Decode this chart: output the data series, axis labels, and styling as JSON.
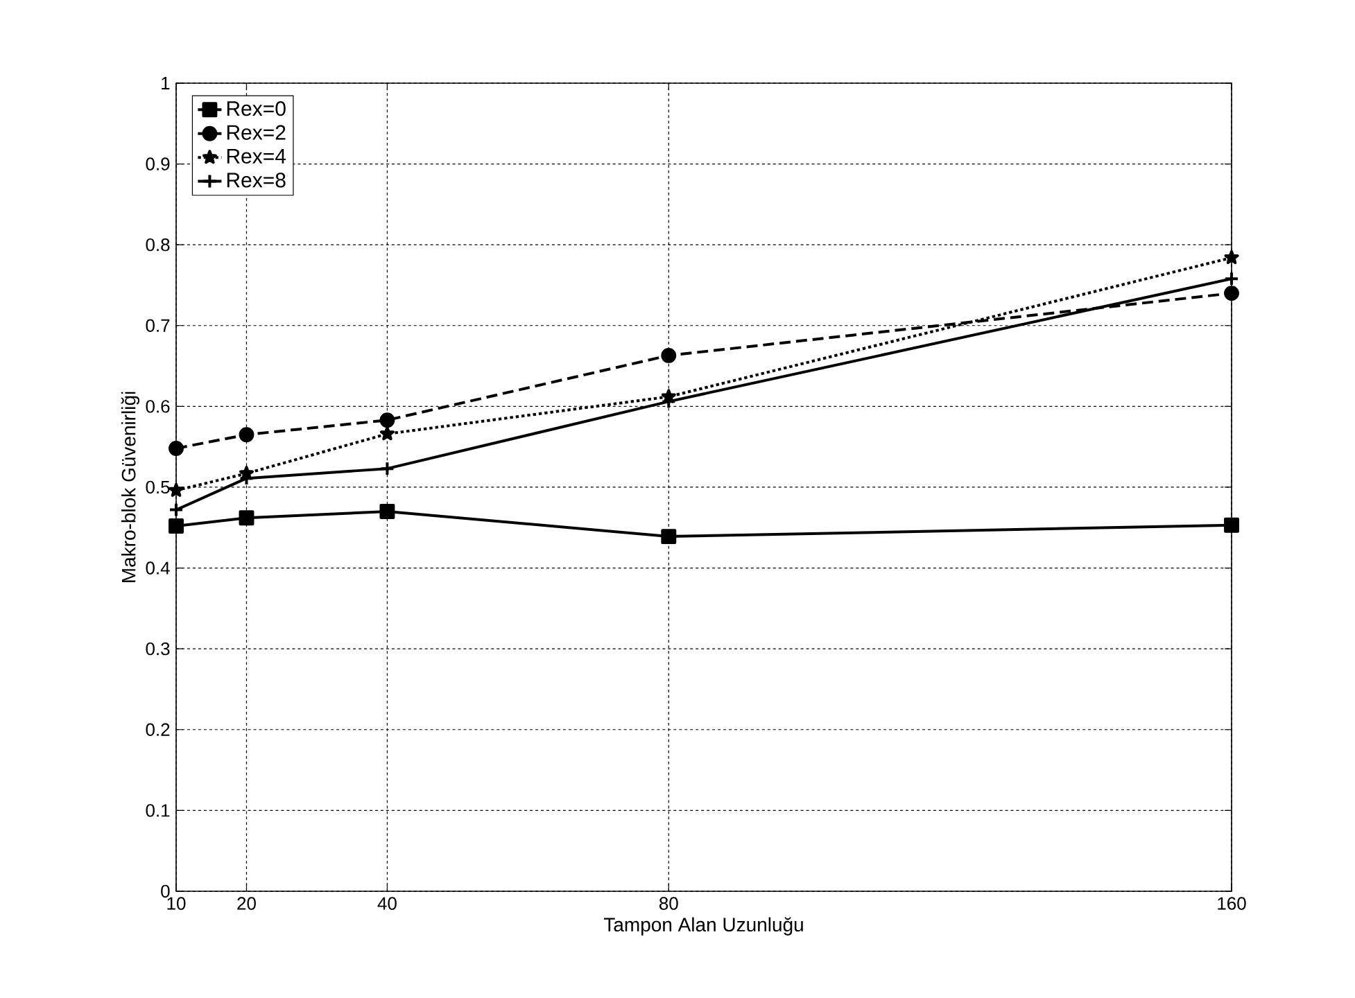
{
  "chart_data": {
    "type": "line",
    "xlabel": "Tampon Alan Uzunluğu",
    "ylabel": "Makro-blok Güvenirliği",
    "x": [
      10,
      20,
      40,
      80,
      160
    ],
    "xlim": [
      10,
      160
    ],
    "xticks": [
      10,
      20,
      40,
      80,
      160
    ],
    "ylim": [
      0,
      1
    ],
    "yticks": [
      0,
      0.1,
      0.2,
      0.3,
      0.4,
      0.5,
      0.6,
      0.7,
      0.8,
      0.9,
      1
    ],
    "grid": true,
    "legend": "top left",
    "series": [
      {
        "name": "Rex=0",
        "color": "#000000",
        "marker": "square",
        "line_style": "solid",
        "values": [
          0.452,
          0.462,
          0.47,
          0.439,
          0.453
        ]
      },
      {
        "name": "Rex=2",
        "color": "#000000",
        "marker": "circle",
        "line_style": "dashed",
        "values": [
          0.548,
          0.565,
          0.583,
          0.663,
          0.74
        ]
      },
      {
        "name": "Rex=4",
        "color": "#000000",
        "marker": "star",
        "line_style": "dotted",
        "values": [
          0.496,
          0.517,
          0.566,
          0.612,
          0.784
        ]
      },
      {
        "name": "Rex=8",
        "color": "#000000",
        "marker": "cross",
        "line_style": "solid",
        "values": [
          0.472,
          0.511,
          0.523,
          0.606,
          0.758
        ]
      }
    ]
  }
}
